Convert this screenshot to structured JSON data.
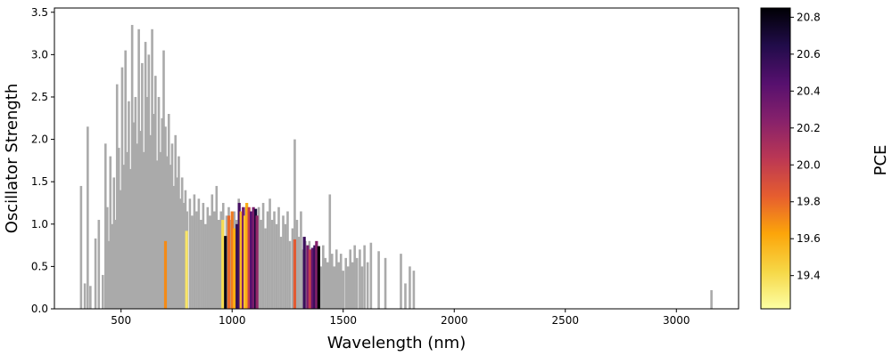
{
  "chart_data": {
    "type": "bar",
    "title": "",
    "xlabel": "Wavelength (nm)",
    "ylabel": "Oscillator Strength",
    "xlim": [
      200,
      3280
    ],
    "ylim": [
      0,
      3.55
    ],
    "xticks": [
      500,
      1000,
      1500,
      2000,
      2500,
      3000
    ],
    "xtick_labels": [
      "500",
      "1000",
      "1500",
      "2000",
      "2500",
      "3000"
    ],
    "yticks": [
      0,
      0.5,
      1.0,
      1.5,
      2.0,
      2.5,
      3.0,
      3.5
    ],
    "ytick_labels": [
      "0.0",
      "0.5",
      "1.0",
      "1.5",
      "2.0",
      "2.5",
      "3.0",
      "3.5"
    ],
    "grid": false,
    "default_bar_color": "#aaaaaa",
    "colorbar": {
      "label": "PCE",
      "range": [
        19.22,
        20.85
      ],
      "ticks": [
        19.4,
        19.6,
        19.8,
        20.0,
        20.2,
        20.4,
        20.6,
        20.8
      ],
      "tick_labels": [
        "19.4",
        "19.6",
        "19.8",
        "20.0",
        "20.2",
        "20.4",
        "20.6",
        "20.8"
      ],
      "colormap": "inferno",
      "stops": [
        "#fcffa4",
        "#f6d746",
        "#fca50a",
        "#e65d2f",
        "#bb3754",
        "#87216b",
        "#56106e",
        "#210c4a",
        "#000004"
      ]
    },
    "gray_bars": [
      [
        320,
        1.45
      ],
      [
        337,
        0.3
      ],
      [
        350,
        2.15
      ],
      [
        362,
        0.27
      ],
      [
        385,
        0.83
      ],
      [
        400,
        1.05
      ],
      [
        418,
        0.4
      ],
      [
        430,
        1.95
      ],
      [
        438,
        1.2
      ],
      [
        445,
        0.8
      ],
      [
        452,
        1.8
      ],
      [
        460,
        1.0
      ],
      [
        468,
        1.55
      ],
      [
        475,
        1.05
      ],
      [
        482,
        2.65
      ],
      [
        490,
        1.9
      ],
      [
        497,
        1.4
      ],
      [
        505,
        2.85
      ],
      [
        512,
        1.7
      ],
      [
        520,
        3.05
      ],
      [
        527,
        1.85
      ],
      [
        535,
        2.45
      ],
      [
        542,
        1.65
      ],
      [
        550,
        3.35
      ],
      [
        557,
        2.2
      ],
      [
        565,
        2.5
      ],
      [
        572,
        1.95
      ],
      [
        580,
        3.3
      ],
      [
        587,
        2.1
      ],
      [
        595,
        2.9
      ],
      [
        602,
        1.85
      ],
      [
        610,
        3.15
      ],
      [
        617,
        2.5
      ],
      [
        625,
        3.0
      ],
      [
        632,
        2.05
      ],
      [
        640,
        3.3
      ],
      [
        647,
        2.3
      ],
      [
        655,
        2.75
      ],
      [
        662,
        1.75
      ],
      [
        670,
        2.5
      ],
      [
        677,
        1.85
      ],
      [
        685,
        2.25
      ],
      [
        692,
        3.05
      ],
      [
        700,
        2.15
      ],
      [
        707,
        1.8
      ],
      [
        715,
        2.3
      ],
      [
        722,
        1.7
      ],
      [
        730,
        1.95
      ],
      [
        737,
        1.45
      ],
      [
        745,
        2.05
      ],
      [
        752,
        1.55
      ],
      [
        760,
        1.8
      ],
      [
        767,
        1.3
      ],
      [
        775,
        1.55
      ],
      [
        782,
        1.25
      ],
      [
        790,
        1.4
      ],
      [
        797,
        1.15
      ],
      [
        810,
        1.3
      ],
      [
        820,
        1.1
      ],
      [
        830,
        1.35
      ],
      [
        840,
        1.15
      ],
      [
        850,
        1.3
      ],
      [
        860,
        1.05
      ],
      [
        870,
        1.25
      ],
      [
        880,
        1.0
      ],
      [
        890,
        1.2
      ],
      [
        900,
        1.1
      ],
      [
        910,
        1.35
      ],
      [
        920,
        1.15
      ],
      [
        930,
        1.45
      ],
      [
        940,
        1.05
      ],
      [
        950,
        1.15
      ],
      [
        960,
        1.25
      ],
      [
        975,
        1.1
      ],
      [
        985,
        1.2
      ],
      [
        995,
        1.05
      ],
      [
        1010,
        1.15
      ],
      [
        1020,
        1.05
      ],
      [
        1030,
        1.3
      ],
      [
        1040,
        1.1
      ],
      [
        1060,
        1.2
      ],
      [
        1075,
        1.05
      ],
      [
        1085,
        1.15
      ],
      [
        1095,
        1.0
      ],
      [
        1105,
        1.1
      ],
      [
        1120,
        1.2
      ],
      [
        1130,
        1.05
      ],
      [
        1140,
        1.25
      ],
      [
        1150,
        0.95
      ],
      [
        1160,
        1.15
      ],
      [
        1170,
        1.3
      ],
      [
        1180,
        1.05
      ],
      [
        1190,
        1.15
      ],
      [
        1200,
        1.0
      ],
      [
        1210,
        1.2
      ],
      [
        1220,
        0.85
      ],
      [
        1230,
        1.1
      ],
      [
        1240,
        1.0
      ],
      [
        1250,
        1.15
      ],
      [
        1260,
        0.8
      ],
      [
        1272,
        0.95
      ],
      [
        1282,
        2.0
      ],
      [
        1292,
        1.05
      ],
      [
        1300,
        0.85
      ],
      [
        1310,
        1.15
      ],
      [
        1318,
        0.7
      ],
      [
        1330,
        0.8
      ],
      [
        1340,
        0.65
      ],
      [
        1348,
        0.8
      ],
      [
        1358,
        0.6
      ],
      [
        1368,
        0.7
      ],
      [
        1378,
        0.55
      ],
      [
        1388,
        0.65
      ],
      [
        1400,
        0.5
      ],
      [
        1410,
        0.75
      ],
      [
        1420,
        0.6
      ],
      [
        1430,
        0.55
      ],
      [
        1440,
        1.35
      ],
      [
        1450,
        0.65
      ],
      [
        1460,
        0.5
      ],
      [
        1470,
        0.7
      ],
      [
        1480,
        0.55
      ],
      [
        1490,
        0.65
      ],
      [
        1500,
        0.45
      ],
      [
        1512,
        0.6
      ],
      [
        1522,
        0.5
      ],
      [
        1532,
        0.7
      ],
      [
        1542,
        0.55
      ],
      [
        1552,
        0.75
      ],
      [
        1562,
        0.6
      ],
      [
        1575,
        0.7
      ],
      [
        1585,
        0.5
      ],
      [
        1596,
        0.75
      ],
      [
        1610,
        0.55
      ],
      [
        1625,
        0.78
      ],
      [
        1660,
        0.68
      ],
      [
        1690,
        0.6
      ],
      [
        1760,
        0.65
      ],
      [
        1780,
        0.3
      ],
      [
        1800,
        0.5
      ],
      [
        1818,
        0.45
      ],
      [
        3158,
        0.22
      ]
    ],
    "colored_bars": [
      [
        700,
        0.8,
        19.7
      ],
      [
        795,
        0.92,
        19.35
      ],
      [
        958,
        1.05,
        19.4
      ],
      [
        970,
        0.86,
        20.8
      ],
      [
        985,
        1.1,
        19.8
      ],
      [
        1000,
        1.15,
        19.75
      ],
      [
        1010,
        0.95,
        19.6
      ],
      [
        1022,
        1.0,
        20.6
      ],
      [
        1032,
        1.25,
        20.5
      ],
      [
        1040,
        1.15,
        19.55
      ],
      [
        1050,
        1.2,
        20.3
      ],
      [
        1058,
        1.1,
        19.5
      ],
      [
        1066,
        1.25,
        19.6
      ],
      [
        1076,
        1.2,
        20.0
      ],
      [
        1086,
        1.15,
        20.45
      ],
      [
        1096,
        1.2,
        20.3
      ],
      [
        1106,
        1.18,
        20.7
      ],
      [
        1112,
        1.1,
        20.2
      ],
      [
        1282,
        0.82,
        19.85
      ],
      [
        1325,
        0.85,
        20.55
      ],
      [
        1340,
        0.75,
        20.3
      ],
      [
        1350,
        0.7,
        20.0
      ],
      [
        1362,
        0.72,
        20.4
      ],
      [
        1372,
        0.75,
        20.55
      ],
      [
        1380,
        0.8,
        20.25
      ],
      [
        1390,
        0.74,
        20.85
      ]
    ]
  }
}
